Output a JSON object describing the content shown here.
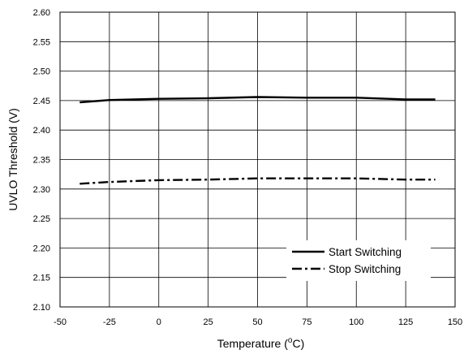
{
  "chart_data": {
    "type": "line",
    "xlabel": "Temperature (°C)",
    "ylabel": "UVLO Threshold (V)",
    "xlim": [
      -50,
      150
    ],
    "ylim": [
      2.1,
      2.6
    ],
    "xticks": [
      -50,
      -25,
      0,
      25,
      50,
      75,
      100,
      125,
      150
    ],
    "yticks": [
      2.1,
      2.15,
      2.2,
      2.25,
      2.3,
      2.35,
      2.4,
      2.45,
      2.5,
      2.55,
      2.6
    ],
    "xtick_labels": [
      "-50",
      "-25",
      "0",
      "25",
      "50",
      "75",
      "100",
      "125",
      "150"
    ],
    "ytick_labels": [
      "2.10",
      "2.15",
      "2.20",
      "2.25",
      "2.30",
      "2.35",
      "2.40",
      "2.45",
      "2.50",
      "2.55",
      "2.60"
    ],
    "grid": true,
    "legend_position": "bottom-right",
    "series": [
      {
        "name": "Start Switching",
        "style": "solid",
        "x": [
          -40,
          -25,
          0,
          25,
          50,
          75,
          100,
          125,
          140
        ],
        "y": [
          2.447,
          2.451,
          2.453,
          2.454,
          2.456,
          2.455,
          2.455,
          2.452,
          2.452
        ]
      },
      {
        "name": "Stop Switching",
        "style": "dash-dot",
        "x": [
          -40,
          -25,
          0,
          25,
          50,
          75,
          100,
          125,
          140
        ],
        "y": [
          2.309,
          2.312,
          2.315,
          2.316,
          2.318,
          2.318,
          2.318,
          2.316,
          2.316
        ]
      }
    ]
  }
}
